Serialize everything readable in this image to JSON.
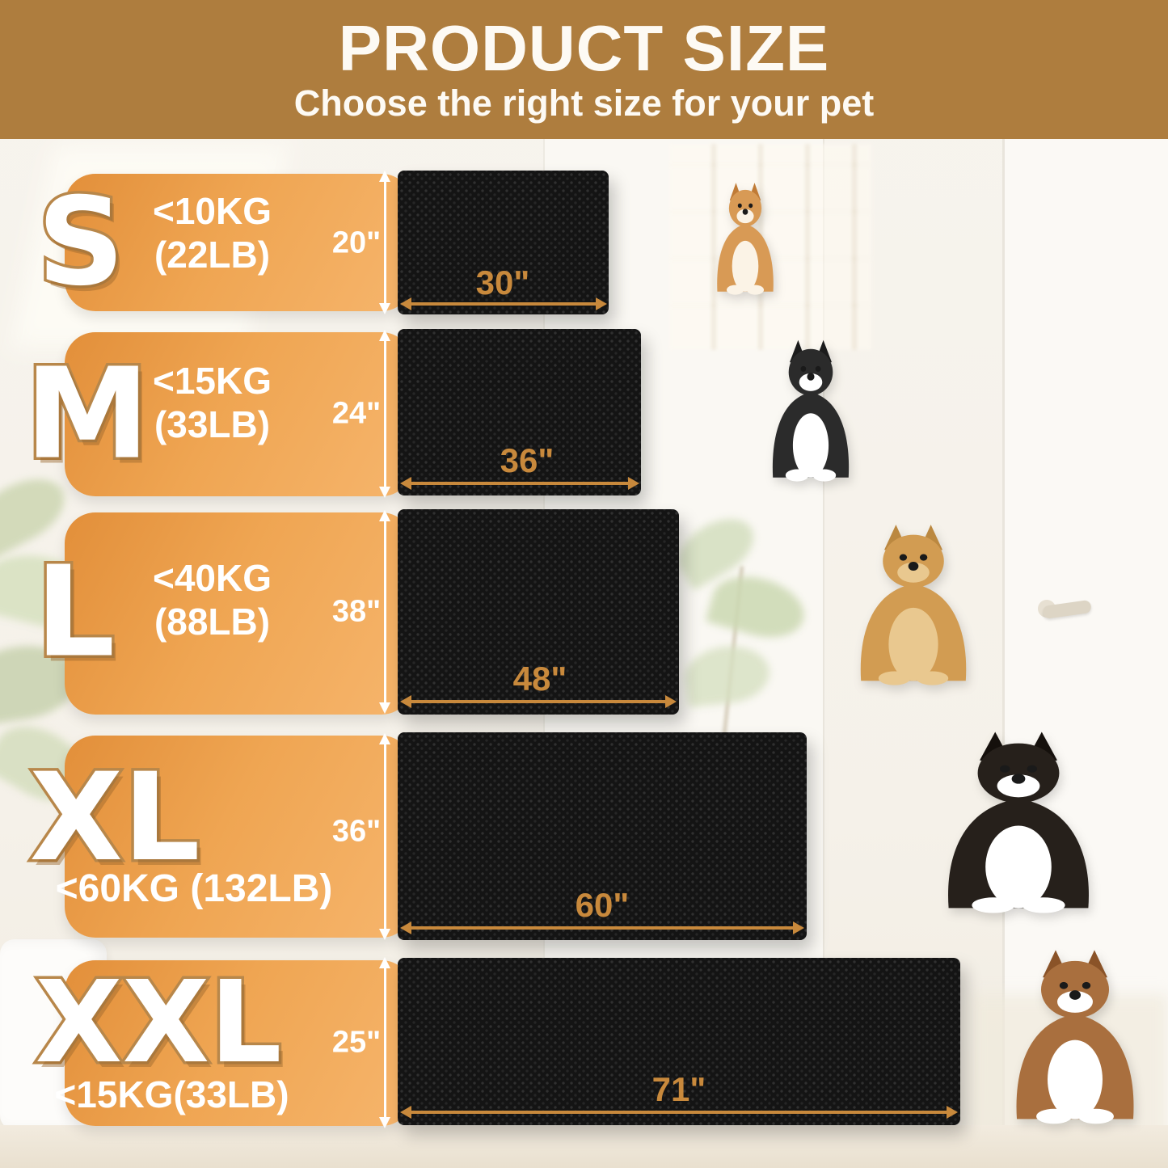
{
  "header": {
    "title": "PRODUCT SIZE",
    "subtitle": "Choose the right size for your pet"
  },
  "colors": {
    "header_bg": "#ae7d3e",
    "bar_gradient_start": "#e28f3a",
    "bar_gradient_end": "#f6b56c",
    "letter_fill": "#ffffff",
    "letter_outline": "#b8874a",
    "mat_color": "#141414",
    "width_label_color": "#c8893c",
    "height_label_color": "#ffffff",
    "height_arrow_color": "#ffffff",
    "width_arrow_color": "#c8893c"
  },
  "rows": [
    {
      "letter": "S",
      "weight_line1": "<10KG",
      "weight_line2": "(22LB)",
      "height_label": "20\"",
      "width_label": "30\"",
      "dog": "corgi"
    },
    {
      "letter": "M",
      "weight_line1": "<15KG",
      "weight_line2": "(33LB)",
      "height_label": "24\"",
      "width_label": "36\"",
      "dog": "border-collie"
    },
    {
      "letter": "L",
      "weight_line1": "<40KG",
      "weight_line2": "(88LB)",
      "height_label": "38\"",
      "width_label": "48\"",
      "dog": "golden-retriever"
    },
    {
      "letter": "XL",
      "weight_line1": "<60KG (132LB)",
      "weight_line2": "",
      "height_label": "36\"",
      "width_label": "60\"",
      "dog": "bernese-mountain-dog"
    },
    {
      "letter": "XXL",
      "weight_line1": "<15KG(33LB)",
      "weight_line2": "",
      "height_label": "25\"",
      "width_label": "71\"",
      "dog": "saint-bernard"
    }
  ],
  "dogs": [
    {
      "name": "corgi",
      "body": "#d89a55",
      "accent": "#fbf3e6",
      "ear": "#c07b36"
    },
    {
      "name": "border-collie",
      "body": "#2b2b2b",
      "accent": "#ffffff",
      "ear": "#1c1c1c"
    },
    {
      "name": "golden-retriever",
      "body": "#d29c52",
      "accent": "#e9c88f",
      "ear": "#bb8840"
    },
    {
      "name": "bernese-mountain-dog",
      "body": "#26201b",
      "accent": "#ffffff",
      "ear": "#15100c"
    },
    {
      "name": "saint-bernard",
      "body": "#a96f3e",
      "accent": "#ffffff",
      "ear": "#8a5328"
    }
  ]
}
